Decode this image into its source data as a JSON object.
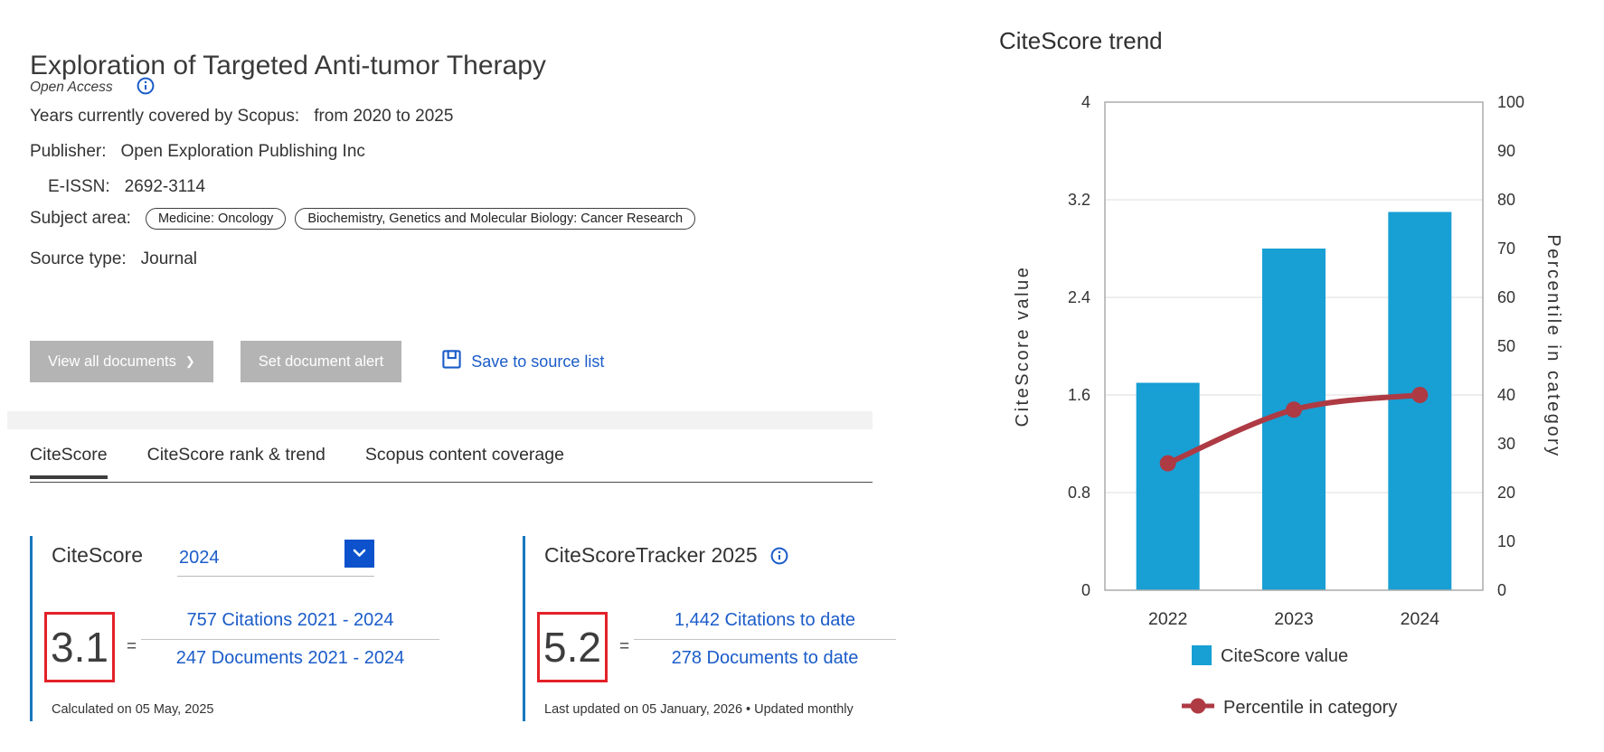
{
  "journal": {
    "title": "Exploration of Targeted Anti-tumor Therapy",
    "open_access_label": "Open Access",
    "rows": {
      "years": {
        "label": "Years currently covered by Scopus:",
        "value": "from 2020 to 2025"
      },
      "publisher": {
        "label": "Publisher:",
        "value": "Open Exploration Publishing Inc"
      },
      "eissn": {
        "label": "E-ISSN:",
        "value": "2692-3114"
      },
      "subject": {
        "label": "Subject area:"
      },
      "source_type": {
        "label": "Source type:",
        "value": "Journal"
      }
    },
    "subject_pills": {
      "0": "Medicine: Oncology",
      "1": "Biochemistry, Genetics and Molecular Biology: Cancer Research"
    }
  },
  "actions": {
    "view_all_label": "View all documents",
    "view_all_chevron": "❯",
    "set_alert_label": "Set document alert",
    "save_label": "Save to source list"
  },
  "tabs": {
    "0": {
      "label": "CiteScore"
    },
    "1": {
      "label": "CiteScore rank & trend"
    },
    "2": {
      "label": "Scopus content coverage"
    }
  },
  "citescore_card": {
    "title": "CiteScore",
    "year": "2024",
    "score": "3.1",
    "equals": "=",
    "numerator": "757 Citations 2021 - 2024",
    "denominator": "247 Documents 2021 - 2024",
    "footnote": "Calculated on 05 May, 2025"
  },
  "tracker_card": {
    "title": "CiteScoreTracker 2025",
    "score": "5.2",
    "equals": "=",
    "numerator": "1,442 Citations to date",
    "denominator": "278 Documents to date",
    "footnote": "Last updated on 05 January, 2026 • Updated monthly"
  },
  "colors": {
    "link_blue": "#1b5cc9",
    "dropdown_blue": "#0d52cc",
    "card_border_blue": "#1878bc",
    "score_box_red": "#e32128",
    "button_gray": "#b4b4b4",
    "bar_cyan": "#189fd4",
    "line_red": "#ae3a44"
  },
  "chart_data": {
    "type": "bar",
    "title": "CiteScore trend",
    "categories": [
      "2022",
      "2023",
      "2024"
    ],
    "series": [
      {
        "name": "CiteScore value",
        "type": "bar",
        "axis": "left",
        "values": [
          1.7,
          2.8,
          3.1
        ],
        "color": "#189fd4"
      },
      {
        "name": "Percentile in category",
        "type": "line",
        "axis": "right",
        "values": [
          26,
          37,
          40
        ],
        "color": "#ae3a44"
      }
    ],
    "left_axis": {
      "label": "CiteScore value",
      "min": 0,
      "max": 4,
      "ticks": [
        0,
        0.8,
        1.6,
        2.4,
        3.2,
        4
      ]
    },
    "right_axis": {
      "label": "Percentile in category",
      "min": 0,
      "max": 100,
      "ticks": [
        0,
        10,
        20,
        30,
        40,
        50,
        60,
        70,
        80,
        90,
        100
      ]
    },
    "grid": true,
    "legend_position": "bottom"
  }
}
